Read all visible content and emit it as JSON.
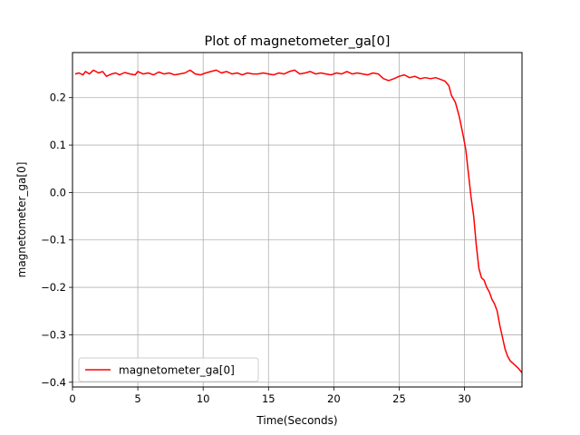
{
  "chart_data": {
    "type": "line",
    "title": "Plot of magnetometer_ga[0]",
    "xlabel": "Time(Seconds)",
    "ylabel": "magnetometer_ga[0]",
    "xlim": [
      0,
      34.4
    ],
    "ylim": [
      -0.41,
      0.295
    ],
    "xticks": [
      0,
      5,
      10,
      15,
      20,
      25,
      30
    ],
    "yticks": [
      -0.4,
      -0.3,
      -0.2,
      -0.1,
      0.0,
      0.1,
      0.2
    ],
    "xtick_labels": [
      "0",
      "5",
      "10",
      "15",
      "20",
      "25",
      "30"
    ],
    "ytick_labels": [
      "−0.4",
      "−0.3",
      "−0.2",
      "−0.1",
      "0.0",
      "0.1",
      "0.2"
    ],
    "grid": true,
    "legend_position": "lower-left",
    "series": [
      {
        "name": "magnetometer_ga[0]",
        "color": "#ff0000",
        "x": [
          0.2,
          0.5,
          0.8,
          1.0,
          1.3,
          1.6,
          2.0,
          2.3,
          2.6,
          3.0,
          3.3,
          3.6,
          4.0,
          4.4,
          4.8,
          5.0,
          5.4,
          5.8,
          6.2,
          6.6,
          7.0,
          7.4,
          7.8,
          8.2,
          8.6,
          9.0,
          9.4,
          9.8,
          10.2,
          10.6,
          11.0,
          11.4,
          11.8,
          12.2,
          12.6,
          13.0,
          13.4,
          13.8,
          14.2,
          14.6,
          15.0,
          15.4,
          15.8,
          16.2,
          16.6,
          17.0,
          17.4,
          17.8,
          18.2,
          18.6,
          19.0,
          19.4,
          19.8,
          20.2,
          20.6,
          21.0,
          21.4,
          21.8,
          22.2,
          22.6,
          23.0,
          23.4,
          23.8,
          24.2,
          24.6,
          25.0,
          25.4,
          25.8,
          26.2,
          26.6,
          27.0,
          27.4,
          27.8,
          28.2,
          28.5,
          28.8,
          29.0,
          29.3,
          29.6,
          29.9,
          30.1,
          30.3,
          30.5,
          30.7,
          30.9,
          31.1,
          31.3,
          31.5,
          31.7,
          31.9,
          32.1,
          32.3,
          32.5,
          32.7,
          32.9,
          33.1,
          33.3,
          33.5,
          33.7,
          33.9,
          34.1,
          34.4
        ],
        "y": [
          0.25,
          0.252,
          0.248,
          0.255,
          0.25,
          0.258,
          0.252,
          0.255,
          0.245,
          0.25,
          0.252,
          0.248,
          0.253,
          0.25,
          0.248,
          0.255,
          0.25,
          0.252,
          0.248,
          0.254,
          0.25,
          0.252,
          0.248,
          0.25,
          0.252,
          0.258,
          0.25,
          0.248,
          0.252,
          0.255,
          0.258,
          0.252,
          0.255,
          0.25,
          0.252,
          0.248,
          0.252,
          0.25,
          0.25,
          0.252,
          0.25,
          0.248,
          0.252,
          0.25,
          0.255,
          0.258,
          0.25,
          0.252,
          0.255,
          0.25,
          0.252,
          0.25,
          0.248,
          0.252,
          0.25,
          0.255,
          0.25,
          0.252,
          0.25,
          0.248,
          0.252,
          0.25,
          0.24,
          0.236,
          0.24,
          0.245,
          0.248,
          0.242,
          0.245,
          0.24,
          0.242,
          0.24,
          0.242,
          0.238,
          0.235,
          0.225,
          0.205,
          0.19,
          0.16,
          0.12,
          0.09,
          0.04,
          -0.01,
          -0.05,
          -0.11,
          -0.16,
          -0.18,
          -0.185,
          -0.2,
          -0.21,
          -0.225,
          -0.235,
          -0.25,
          -0.28,
          -0.305,
          -0.33,
          -0.345,
          -0.355,
          -0.36,
          -0.365,
          -0.37,
          -0.38
        ]
      }
    ]
  }
}
